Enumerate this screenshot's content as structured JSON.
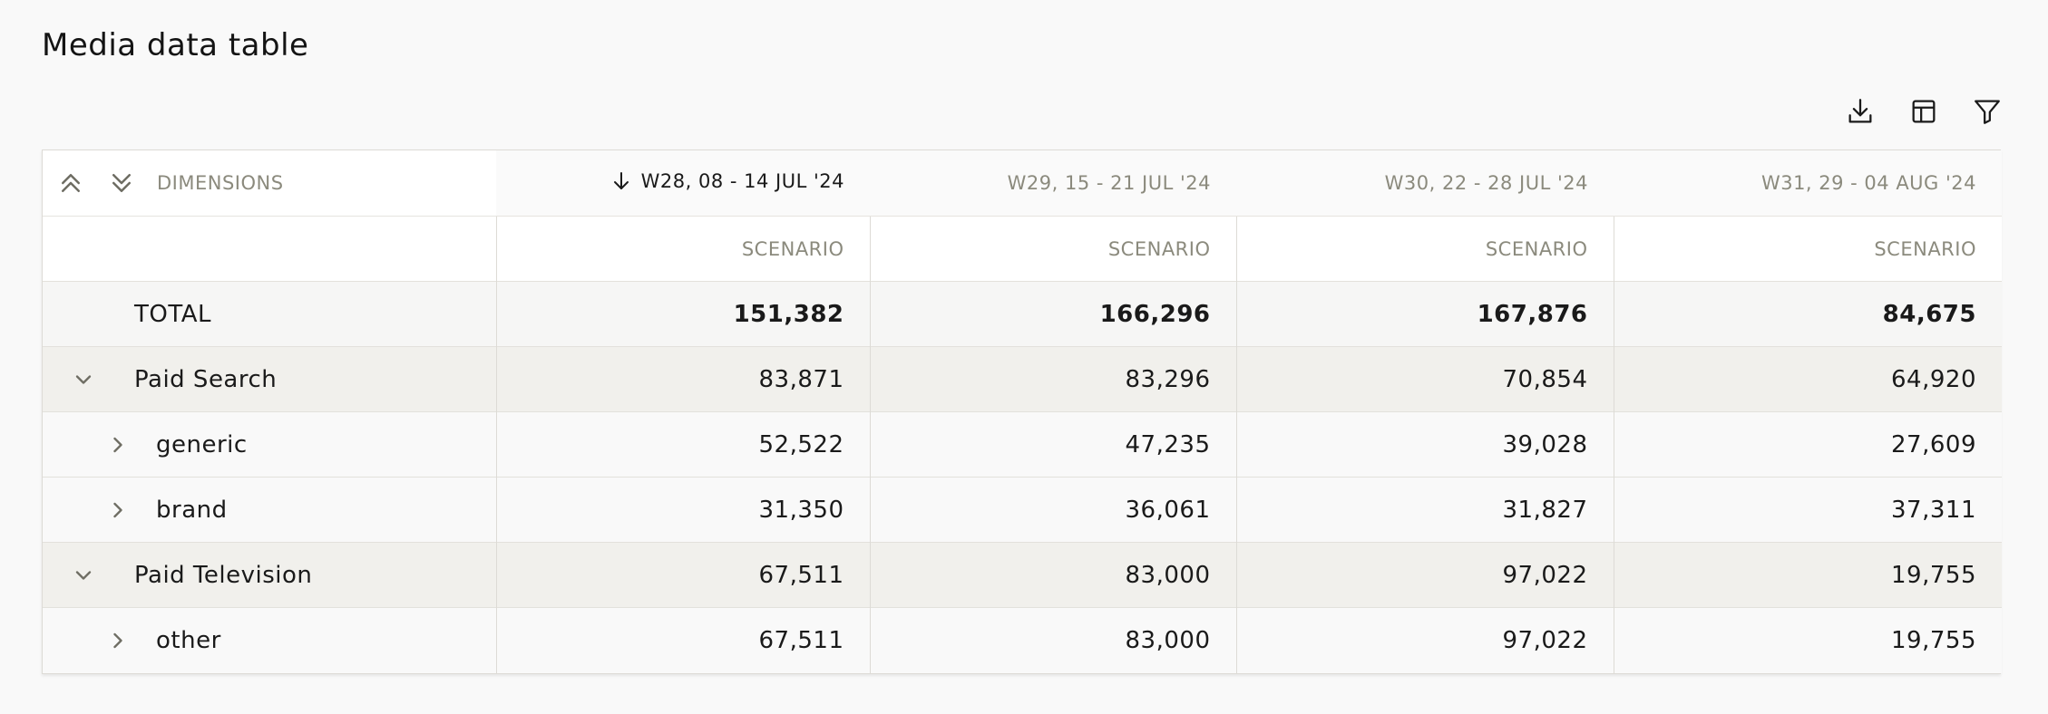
{
  "page": {
    "title": "Media data table"
  },
  "toolbar": {
    "icons": [
      "download-icon",
      "table-layout-icon",
      "filter-icon"
    ]
  },
  "table": {
    "dimensions_label": "DIMENSIONS",
    "columns": [
      {
        "label": "W28, 08 - 14 JUL '24",
        "sub": "SCENARIO",
        "sorted": "desc"
      },
      {
        "label": "W29, 15 - 21 JUL '24",
        "sub": "SCENARIO"
      },
      {
        "label": "W30, 22 - 28 JUL '24",
        "sub": "SCENARIO"
      },
      {
        "label": "W31, 29 - 04 AUG '24",
        "sub": "SCENARIO"
      }
    ],
    "rows": [
      {
        "label": "TOTAL",
        "values": [
          "151,382",
          "166,296",
          "167,876",
          "84,675"
        ]
      },
      {
        "label": "Paid Search",
        "values": [
          "83,871",
          "83,296",
          "70,854",
          "64,920"
        ]
      },
      {
        "label": "generic",
        "values": [
          "52,522",
          "47,235",
          "39,028",
          "27,609"
        ]
      },
      {
        "label": "brand",
        "values": [
          "31,350",
          "36,061",
          "31,827",
          "37,311"
        ]
      },
      {
        "label": "Paid Television",
        "values": [
          "67,511",
          "83,000",
          "97,022",
          "19,755"
        ]
      },
      {
        "label": "other",
        "values": [
          "67,511",
          "83,000",
          "97,022",
          "19,755"
        ]
      }
    ]
  },
  "colors": {
    "header_text": "#8b8a7d",
    "group_row_bg": "#f1f0ec",
    "border": "#dddbd6"
  }
}
